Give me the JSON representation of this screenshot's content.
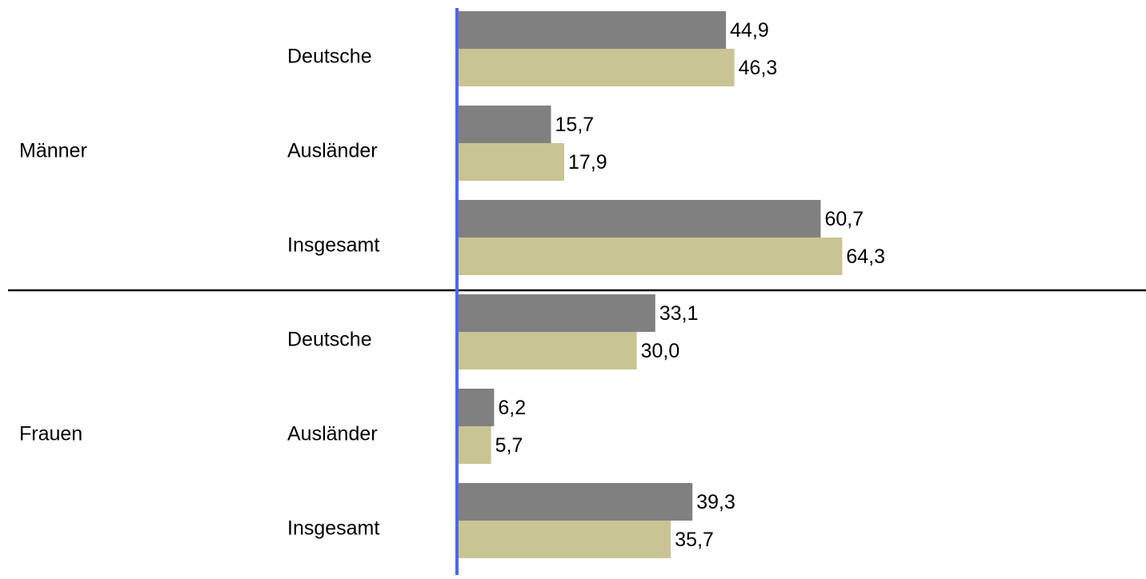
{
  "chart_data": {
    "type": "bar",
    "orientation": "horizontal",
    "groups": [
      {
        "label": "Männer",
        "categories": [
          "Deutsche",
          "Ausländer",
          "Insgesamt"
        ]
      },
      {
        "label": "Frauen",
        "categories": [
          "Deutsche",
          "Ausländer",
          "Insgesamt"
        ]
      }
    ],
    "series": [
      {
        "color": "#808080",
        "values": [
          44.9,
          15.7,
          60.7,
          33.1,
          6.2,
          39.3
        ],
        "value_labels": [
          "44,9",
          "15,7",
          "60,7",
          "33,1",
          "6,2",
          "39,3"
        ]
      },
      {
        "color": "#c9c493",
        "values": [
          46.3,
          17.9,
          64.3,
          30.0,
          5.7,
          35.7
        ],
        "value_labels": [
          "46,3",
          "17,9",
          "64,3",
          "30,0",
          "5,7",
          "35,7"
        ]
      }
    ],
    "xlim": [
      0,
      115
    ],
    "axis_color": "#4a66f0"
  }
}
